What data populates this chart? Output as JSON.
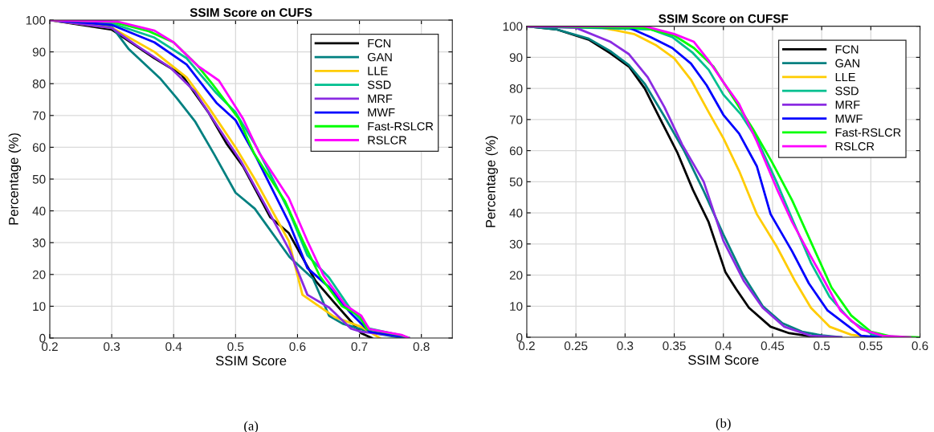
{
  "chart_data": [
    {
      "type": "line",
      "title": "SSIM Score on CUFS",
      "xlabel": "SSIM Score",
      "ylabel": "Percentage (%)",
      "annotations": [
        "(a)"
      ],
      "xlim": [
        0.2,
        0.85
      ],
      "xticks": [
        0.2,
        0.3,
        0.4,
        0.5,
        0.6,
        0.7,
        0.8
      ],
      "ylim": [
        0,
        100
      ],
      "yticks": [
        0,
        10,
        20,
        30,
        40,
        50,
        60,
        70,
        80,
        90,
        100
      ],
      "grid": true,
      "legend": "top right",
      "marker": "none",
      "line_style": "solid",
      "series": [
        {
          "name": "FCN",
          "color": "#000000",
          "x": [
            0.2,
            0.3,
            0.369,
            0.413,
            0.456,
            0.486,
            0.512,
            0.556,
            0.586,
            0.629,
            0.66,
            0.686,
            0.703,
            0.72
          ],
          "values": [
            100,
            97,
            88,
            82.8,
            71,
            61,
            54,
            38,
            33,
            18,
            11,
            5.3,
            1.5,
            0
          ]
        },
        {
          "name": "GAN",
          "color": "#008080",
          "x": [
            0.2,
            0.3,
            0.327,
            0.379,
            0.405,
            0.435,
            0.466,
            0.5,
            0.531,
            0.587,
            0.625,
            0.651,
            0.673,
            0.725,
            0.77
          ],
          "values": [
            100,
            98,
            91,
            81.5,
            75.5,
            68,
            57.6,
            45.7,
            40.7,
            25.5,
            18.7,
            7,
            4.5,
            1.5,
            0
          ]
        },
        {
          "name": "LLE",
          "color": "#ffcc00",
          "x": [
            0.2,
            0.3,
            0.369,
            0.421,
            0.456,
            0.5,
            0.531,
            0.586,
            0.608,
            0.66,
            0.703,
            0.733
          ],
          "values": [
            100,
            97.6,
            90,
            82,
            72.7,
            60,
            50,
            30.5,
            13.6,
            6.6,
            3.5,
            0
          ]
        },
        {
          "name": "SSD",
          "color": "#00bf8f",
          "x": [
            0.2,
            0.3,
            0.369,
            0.421,
            0.469,
            0.5,
            0.534,
            0.586,
            0.616,
            0.651,
            0.686,
            0.716,
            0.768,
            0.78
          ],
          "values": [
            100,
            99,
            94.5,
            88,
            77,
            71,
            60,
            40,
            26,
            19,
            9,
            3,
            0.8,
            0
          ]
        },
        {
          "name": "MRF",
          "color": "#8a2be2",
          "x": [
            0.2,
            0.3,
            0.34,
            0.395,
            0.434,
            0.473,
            0.508,
            0.551,
            0.586,
            0.616,
            0.651,
            0.686,
            0.703,
            0.768,
            0.77
          ],
          "values": [
            100,
            97.5,
            92,
            85,
            77.6,
            66,
            55.8,
            40.7,
            28,
            13.6,
            9.6,
            3,
            2,
            0.5,
            0
          ]
        },
        {
          "name": "MWF",
          "color": "#0000ff",
          "x": [
            0.2,
            0.3,
            0.369,
            0.421,
            0.469,
            0.5,
            0.534,
            0.586,
            0.616,
            0.651,
            0.686,
            0.716,
            0.768,
            0.78
          ],
          "values": [
            100,
            98.5,
            93,
            86,
            74,
            68.5,
            56.6,
            36.4,
            22,
            16,
            7.8,
            2,
            0.5,
            0
          ]
        },
        {
          "name": "Fast-RSLCR",
          "color": "#00ff00",
          "x": [
            0.2,
            0.3,
            0.36,
            0.4,
            0.439,
            0.462,
            0.505,
            0.53,
            0.58,
            0.61,
            0.636,
            0.672,
            0.7,
            0.712,
            0.765,
            0.78
          ],
          "values": [
            100,
            99.5,
            96.5,
            93,
            85.6,
            80,
            69,
            58,
            43,
            30,
            19.5,
            10,
            7,
            2.8,
            1,
            0
          ]
        },
        {
          "name": "RSLCR",
          "color": "#ff00ff",
          "x": [
            0.2,
            0.31,
            0.369,
            0.4,
            0.439,
            0.473,
            0.512,
            0.538,
            0.586,
            0.616,
            0.642,
            0.677,
            0.703,
            0.716,
            0.768,
            0.78
          ],
          "values": [
            100,
            99.5,
            96.7,
            93,
            85.6,
            81,
            69,
            58.3,
            44,
            30.5,
            19.7,
            10.4,
            7,
            2.8,
            1,
            0
          ]
        }
      ]
    },
    {
      "type": "line",
      "title": "SSIM Score on CUFSF",
      "xlabel": "SSIM Score",
      "ylabel": "Percentage (%)",
      "annotations": [
        "(b)"
      ],
      "xlim": [
        0.2,
        0.6
      ],
      "xticks": [
        0.2,
        0.25,
        0.3,
        0.35,
        0.4,
        0.45,
        0.5,
        0.55,
        0.6
      ],
      "ylim": [
        0,
        100
      ],
      "yticks": [
        0,
        10,
        20,
        30,
        40,
        50,
        60,
        70,
        80,
        90,
        100
      ],
      "grid": true,
      "legend": "top right",
      "marker": "none",
      "line_style": "solid",
      "series": [
        {
          "name": "FCN",
          "color": "#000000",
          "x": [
            0.2,
            0.23,
            0.263,
            0.285,
            0.304,
            0.32,
            0.336,
            0.353,
            0.369,
            0.385,
            0.402,
            0.413,
            0.426,
            0.448,
            0.467,
            0.489,
            0.5
          ],
          "values": [
            100,
            99,
            95.7,
            91.3,
            87,
            80,
            70,
            59.5,
            47.4,
            37,
            21,
            15.5,
            9.5,
            3.4,
            1.3,
            0.3,
            0
          ]
        },
        {
          "name": "GAN",
          "color": "#008080",
          "x": [
            0.2,
            0.23,
            0.263,
            0.285,
            0.304,
            0.32,
            0.34,
            0.36,
            0.38,
            0.4,
            0.42,
            0.44,
            0.46,
            0.48,
            0.5,
            0.52
          ],
          "values": [
            100,
            99,
            96,
            92,
            87.5,
            81.5,
            71,
            60,
            47,
            33,
            20,
            10,
            4.5,
            1.8,
            0.6,
            0
          ]
        },
        {
          "name": "LLE",
          "color": "#ffcc00",
          "x": [
            0.2,
            0.277,
            0.309,
            0.331,
            0.35,
            0.367,
            0.385,
            0.4,
            0.416,
            0.434,
            0.454,
            0.473,
            0.489,
            0.508,
            0.53,
            0.55
          ],
          "values": [
            100,
            99.5,
            97.5,
            94,
            89.7,
            82.8,
            72.4,
            64,
            53.5,
            39.6,
            29.3,
            18,
            9.5,
            3.4,
            0.8,
            0
          ]
        },
        {
          "name": "SSD",
          "color": "#00bf8f",
          "x": [
            0.2,
            0.326,
            0.348,
            0.369,
            0.385,
            0.4,
            0.418,
            0.434,
            0.454,
            0.47,
            0.489,
            0.508,
            0.53,
            0.552,
            0.58
          ],
          "values": [
            100,
            99,
            96.5,
            91.4,
            86,
            78,
            71.6,
            63.8,
            50,
            38,
            24,
            13,
            5.2,
            0.8,
            0
          ]
        },
        {
          "name": "MRF",
          "color": "#8a2be2",
          "x": [
            0.2,
            0.25,
            0.285,
            0.304,
            0.323,
            0.34,
            0.358,
            0.38,
            0.4,
            0.421,
            0.44,
            0.462,
            0.489,
            0.52
          ],
          "values": [
            100,
            99.5,
            95,
            91,
            83.6,
            74,
            62,
            50,
            31,
            18,
            9.5,
            3.4,
            0.5,
            0
          ]
        },
        {
          "name": "MWF",
          "color": "#0000ff",
          "x": [
            0.2,
            0.304,
            0.326,
            0.348,
            0.367,
            0.383,
            0.4,
            0.416,
            0.434,
            0.448,
            0.47,
            0.487,
            0.506,
            0.524,
            0.54,
            0.56
          ],
          "values": [
            100,
            99.5,
            96.5,
            93,
            88,
            81,
            71.5,
            65.5,
            55,
            39.6,
            27.6,
            17.3,
            8.6,
            4.3,
            0.5,
            0
          ]
        },
        {
          "name": "Fast-RSLCR",
          "color": "#00ff00",
          "x": [
            0.2,
            0.32,
            0.35,
            0.37,
            0.39,
            0.41,
            0.43,
            0.45,
            0.47,
            0.49,
            0.51,
            0.53,
            0.55,
            0.57,
            0.6
          ],
          "values": [
            100,
            99.5,
            97,
            93,
            87,
            77,
            67,
            56,
            44,
            30,
            16,
            7,
            1.8,
            0.3,
            0
          ]
        },
        {
          "name": "RSLCR",
          "color": "#ff00ff",
          "x": [
            0.2,
            0.32,
            0.35,
            0.37,
            0.385,
            0.4,
            0.416,
            0.434,
            0.454,
            0.47,
            0.489,
            0.503,
            0.519,
            0.54,
            0.562,
            0.59
          ],
          "values": [
            100,
            100,
            97.5,
            95,
            89,
            82,
            75,
            63,
            48,
            37,
            26,
            18,
            8.6,
            2.6,
            0.5,
            0
          ]
        }
      ]
    }
  ]
}
